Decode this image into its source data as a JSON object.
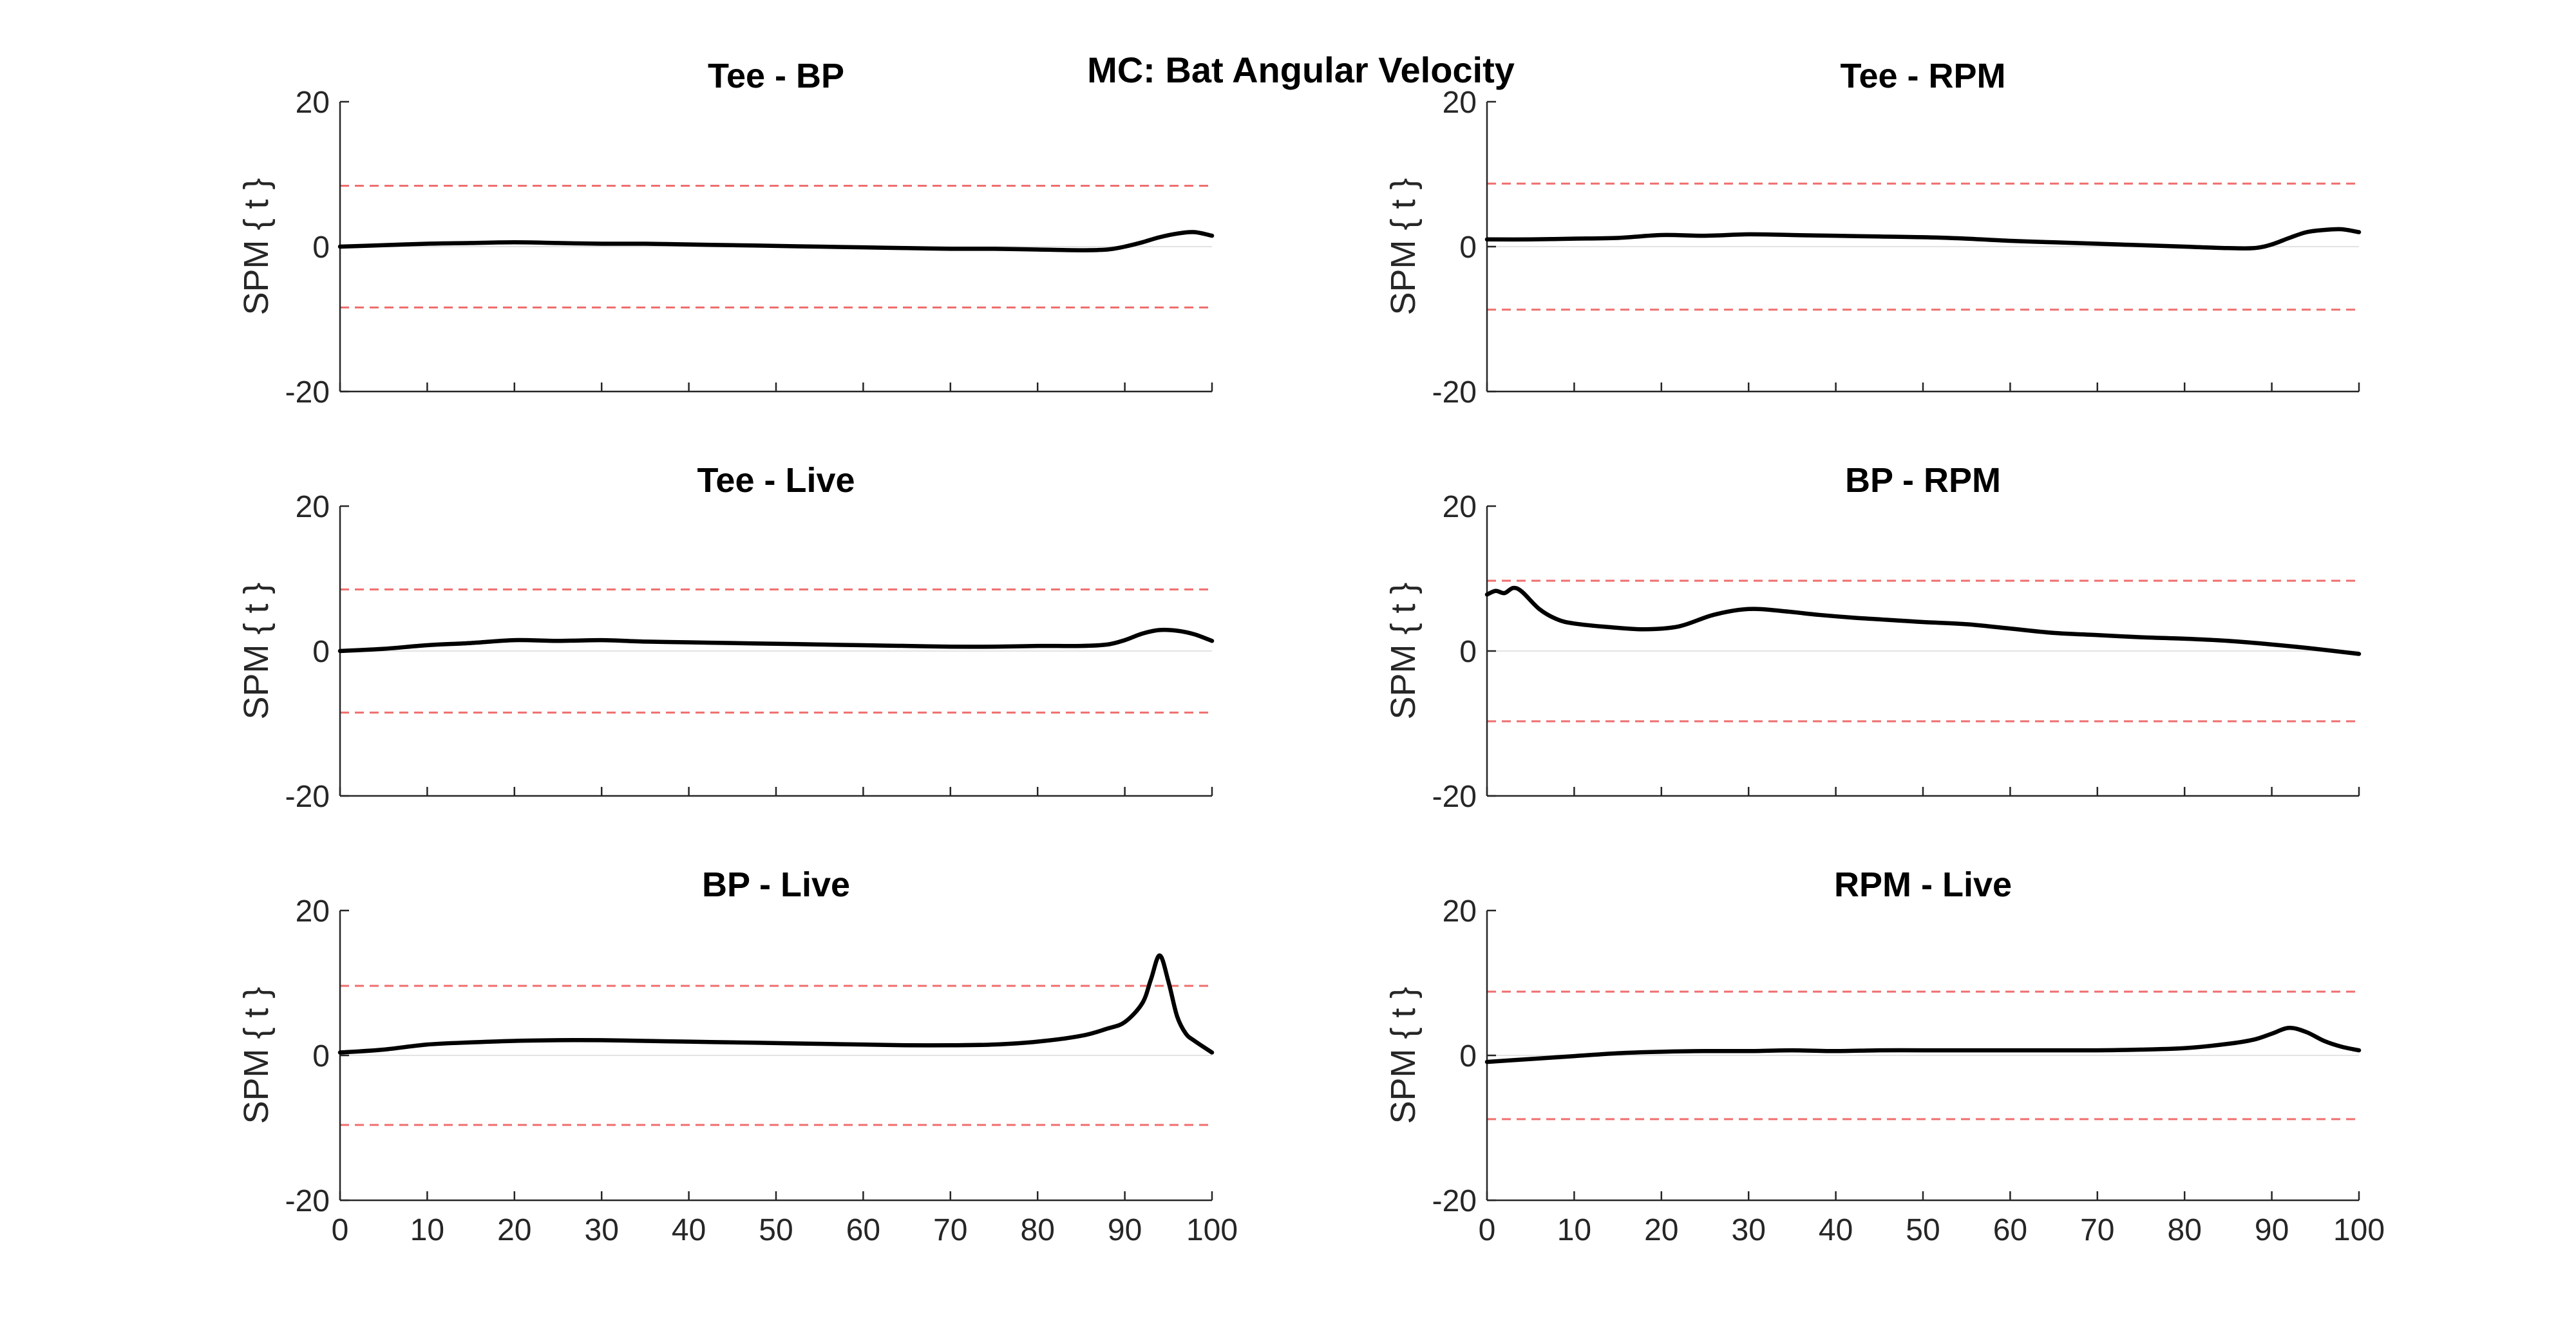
{
  "figure_title": "MC: Bat Angular Velocity",
  "chart_data": [
    {
      "type": "line",
      "title": "Tee - BP",
      "ylabel": "SPM { t }",
      "xlabel": "",
      "xlim": [
        0,
        100
      ],
      "ylim": [
        -20,
        20
      ],
      "yticks": [
        -20,
        0,
        20
      ],
      "xticks": [
        0,
        10,
        20,
        30,
        40,
        50,
        60,
        70,
        80,
        90,
        100
      ],
      "show_xtick_labels": false,
      "threshold": 8.4,
      "series": [
        {
          "x": [
            0,
            5,
            10,
            15,
            20,
            25,
            30,
            35,
            40,
            45,
            50,
            55,
            60,
            65,
            70,
            75,
            80,
            85,
            88,
            90,
            92,
            94,
            96,
            98,
            100
          ],
          "y": [
            0,
            0.2,
            0.4,
            0.5,
            0.6,
            0.5,
            0.4,
            0.4,
            0.3,
            0.2,
            0.1,
            0.0,
            -0.1,
            -0.2,
            -0.3,
            -0.3,
            -0.4,
            -0.5,
            -0.4,
            0.0,
            0.6,
            1.3,
            1.8,
            2.0,
            1.5
          ]
        }
      ]
    },
    {
      "type": "line",
      "title": "Tee - RPM",
      "ylabel": "SPM { t }",
      "xlabel": "",
      "xlim": [
        0,
        100
      ],
      "ylim": [
        -20,
        20
      ],
      "yticks": [
        -20,
        0,
        20
      ],
      "xticks": [
        0,
        10,
        20,
        30,
        40,
        50,
        60,
        70,
        80,
        90,
        100
      ],
      "show_xtick_labels": false,
      "threshold": 8.7,
      "series": [
        {
          "x": [
            0,
            5,
            10,
            15,
            20,
            25,
            30,
            35,
            40,
            45,
            50,
            55,
            60,
            65,
            70,
            75,
            80,
            85,
            88,
            90,
            92,
            94,
            96,
            98,
            100
          ],
          "y": [
            1.0,
            1.0,
            1.1,
            1.2,
            1.6,
            1.5,
            1.7,
            1.6,
            1.5,
            1.4,
            1.3,
            1.1,
            0.8,
            0.6,
            0.4,
            0.2,
            0.0,
            -0.2,
            -0.2,
            0.3,
            1.2,
            2.0,
            2.3,
            2.4,
            2.0
          ]
        }
      ]
    },
    {
      "type": "line",
      "title": "Tee - Live",
      "ylabel": "SPM { t }",
      "xlabel": "",
      "xlim": [
        0,
        100
      ],
      "ylim": [
        -20,
        20
      ],
      "yticks": [
        -20,
        0,
        20
      ],
      "xticks": [
        0,
        10,
        20,
        30,
        40,
        50,
        60,
        70,
        80,
        90,
        100
      ],
      "show_xtick_labels": false,
      "threshold": 8.5,
      "series": [
        {
          "x": [
            0,
            5,
            10,
            15,
            20,
            25,
            30,
            35,
            40,
            45,
            50,
            55,
            60,
            65,
            70,
            75,
            80,
            85,
            88,
            90,
            92,
            94,
            96,
            98,
            100
          ],
          "y": [
            0,
            0.3,
            0.8,
            1.1,
            1.5,
            1.4,
            1.5,
            1.3,
            1.2,
            1.1,
            1.0,
            0.9,
            0.8,
            0.7,
            0.6,
            0.6,
            0.7,
            0.7,
            0.9,
            1.5,
            2.4,
            2.9,
            2.8,
            2.3,
            1.4
          ]
        }
      ]
    },
    {
      "type": "line",
      "title": "BP - RPM",
      "ylabel": "SPM { t }",
      "xlabel": "",
      "xlim": [
        0,
        100
      ],
      "ylim": [
        -20,
        20
      ],
      "yticks": [
        -20,
        0,
        20
      ],
      "xticks": [
        0,
        10,
        20,
        30,
        40,
        50,
        60,
        70,
        80,
        90,
        100
      ],
      "show_xtick_labels": false,
      "threshold": 9.7,
      "series": [
        {
          "x": [
            0,
            1,
            2,
            3,
            4,
            6,
            8,
            10,
            14,
            18,
            22,
            26,
            30,
            34,
            38,
            42,
            46,
            50,
            55,
            60,
            65,
            70,
            75,
            80,
            85,
            90,
            95,
            100
          ],
          "y": [
            7.8,
            8.3,
            8.0,
            8.7,
            8.2,
            5.8,
            4.4,
            3.8,
            3.3,
            3.0,
            3.4,
            5.0,
            5.8,
            5.5,
            5.0,
            4.6,
            4.3,
            4.0,
            3.7,
            3.1,
            2.5,
            2.2,
            1.9,
            1.7,
            1.4,
            0.9,
            0.3,
            -0.4
          ]
        }
      ]
    },
    {
      "type": "line",
      "title": "BP - Live",
      "ylabel": "SPM { t }",
      "xlabel": "",
      "xlim": [
        0,
        100
      ],
      "ylim": [
        -20,
        20
      ],
      "yticks": [
        -20,
        0,
        20
      ],
      "xticks": [
        0,
        10,
        20,
        30,
        40,
        50,
        60,
        70,
        80,
        90,
        100
      ],
      "xtick_labels": [
        "0",
        "10",
        "20",
        "30",
        "40",
        "50",
        "60",
        "70",
        "80",
        "90",
        "100"
      ],
      "show_xtick_labels": true,
      "threshold": 9.6,
      "series": [
        {
          "x": [
            0,
            5,
            10,
            15,
            20,
            25,
            30,
            35,
            40,
            45,
            50,
            55,
            60,
            65,
            70,
            75,
            80,
            85,
            88,
            90,
            92,
            93,
            94,
            95,
            96,
            97,
            98,
            100
          ],
          "y": [
            0.4,
            0.8,
            1.5,
            1.8,
            2.0,
            2.1,
            2.1,
            2.0,
            1.9,
            1.8,
            1.7,
            1.6,
            1.5,
            1.4,
            1.4,
            1.5,
            1.9,
            2.7,
            3.7,
            4.6,
            7.2,
            10.5,
            13.8,
            10.2,
            5.4,
            3.0,
            2.0,
            0.4
          ]
        }
      ]
    },
    {
      "type": "line",
      "title": "RPM - Live",
      "ylabel": "SPM { t }",
      "xlabel": "",
      "xlim": [
        0,
        100
      ],
      "ylim": [
        -20,
        20
      ],
      "yticks": [
        -20,
        0,
        20
      ],
      "xticks": [
        0,
        10,
        20,
        30,
        40,
        50,
        60,
        70,
        80,
        90,
        100
      ],
      "xtick_labels": [
        "0",
        "10",
        "20",
        "30",
        "40",
        "50",
        "60",
        "70",
        "80",
        "90",
        "100"
      ],
      "show_xtick_labels": true,
      "threshold": 8.8,
      "series": [
        {
          "x": [
            0,
            5,
            10,
            15,
            20,
            25,
            30,
            35,
            40,
            45,
            50,
            55,
            60,
            65,
            70,
            75,
            80,
            85,
            88,
            90,
            92,
            94,
            96,
            98,
            100
          ],
          "y": [
            -0.9,
            -0.5,
            -0.1,
            0.3,
            0.5,
            0.6,
            0.6,
            0.7,
            0.6,
            0.7,
            0.7,
            0.7,
            0.7,
            0.7,
            0.7,
            0.8,
            1.0,
            1.6,
            2.2,
            3.0,
            3.8,
            3.2,
            2.0,
            1.2,
            0.7
          ]
        }
      ]
    }
  ]
}
